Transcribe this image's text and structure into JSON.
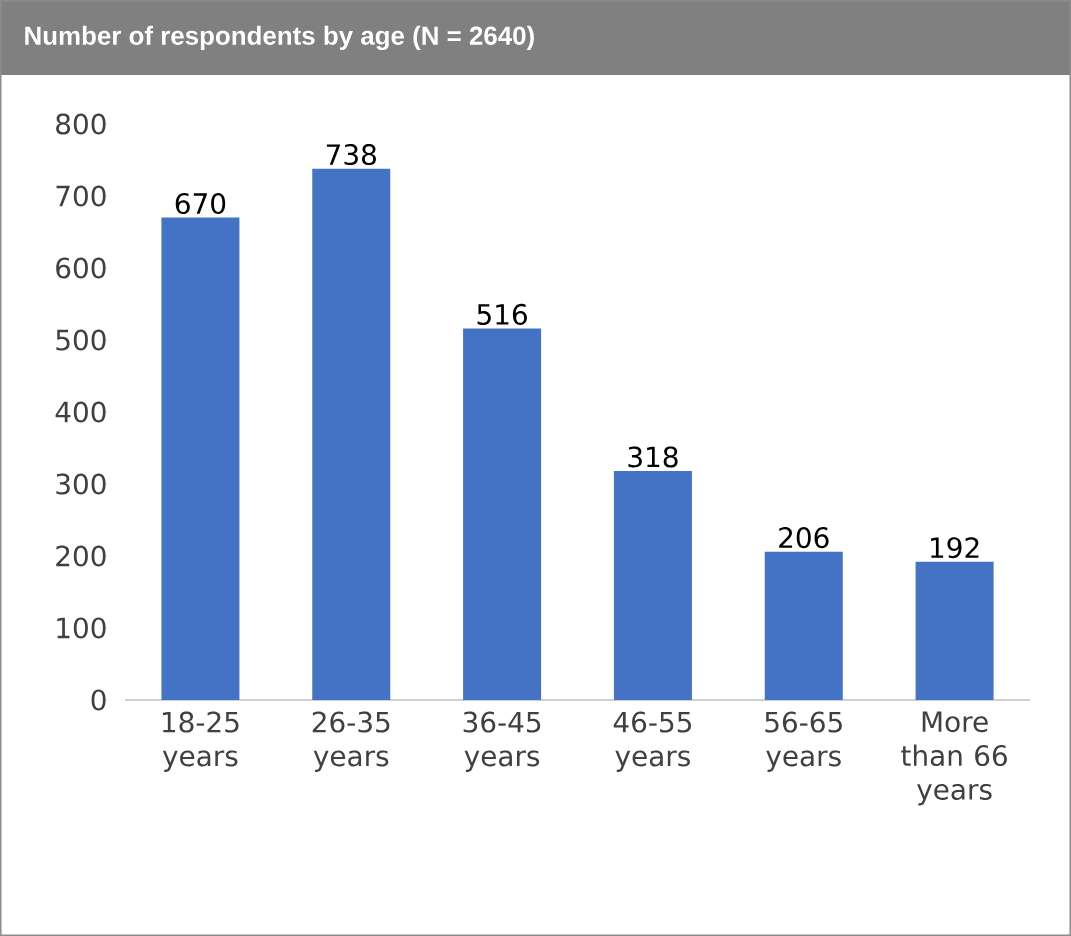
{
  "chart_data": {
    "type": "bar",
    "title": "Number of respondents by age (N = 2640)",
    "categories": [
      "18-25 years",
      "26-35 years",
      "36-45 years",
      "46-55 years",
      "56-65 years",
      "More than 66 years"
    ],
    "values": [
      670,
      738,
      516,
      318,
      206,
      192
    ],
    "color": "#4472c4",
    "ylim": [
      0,
      800
    ],
    "yticks": [
      0,
      100,
      200,
      300,
      400,
      500,
      600,
      700,
      800
    ],
    "data_labels": true
  }
}
